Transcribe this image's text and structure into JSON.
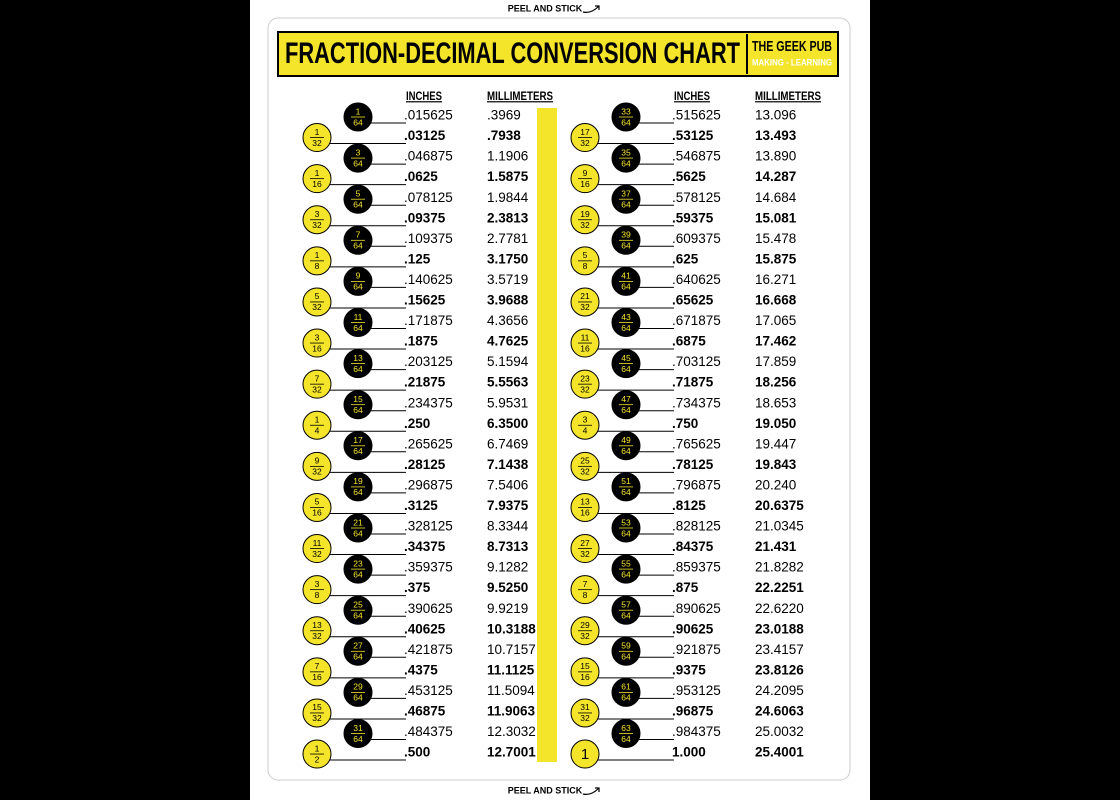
{
  "header": {
    "peel_top": "PEEL AND STICK",
    "title": "FRACTION-DECIMAL CONVERSION CHART",
    "brand": "THE GEEK PUB",
    "tagline": "MAKING - LEARNING"
  },
  "footer": {
    "peel_bottom": "PEEL AND STICK"
  },
  "columns": [
    {
      "inches_header": "INCHES",
      "mm_header": "MILLIMETERS",
      "rows": [
        [
          "1",
          "64",
          ".015625",
          ".3969"
        ],
        [
          "1",
          "32",
          ".03125",
          ".7938"
        ],
        [
          "3",
          "64",
          ".046875",
          "1.1906"
        ],
        [
          "1",
          "16",
          ".0625",
          "1.5875"
        ],
        [
          "5",
          "64",
          ".078125",
          "1.9844"
        ],
        [
          "3",
          "32",
          ".09375",
          "2.3813"
        ],
        [
          "7",
          "64",
          ".109375",
          "2.7781"
        ],
        [
          "1",
          "8",
          ".125",
          "3.1750"
        ],
        [
          "9",
          "64",
          ".140625",
          "3.5719"
        ],
        [
          "5",
          "32",
          ".15625",
          "3.9688"
        ],
        [
          "11",
          "64",
          ".171875",
          "4.3656"
        ],
        [
          "3",
          "16",
          ".1875",
          "4.7625"
        ],
        [
          "13",
          "64",
          ".203125",
          "5.1594"
        ],
        [
          "7",
          "32",
          ".21875",
          "5.5563"
        ],
        [
          "15",
          "64",
          ".234375",
          "5.9531"
        ],
        [
          "1",
          "4",
          ".250",
          "6.3500"
        ],
        [
          "17",
          "64",
          ".265625",
          "6.7469"
        ],
        [
          "9",
          "32",
          ".28125",
          "7.1438"
        ],
        [
          "19",
          "64",
          ".296875",
          "7.5406"
        ],
        [
          "5",
          "16",
          ".3125",
          "7.9375"
        ],
        [
          "21",
          "64",
          ".328125",
          "8.3344"
        ],
        [
          "11",
          "32",
          ".34375",
          "8.7313"
        ],
        [
          "23",
          "64",
          ".359375",
          "9.1282"
        ],
        [
          "3",
          "8",
          ".375",
          "9.5250"
        ],
        [
          "25",
          "64",
          ".390625",
          "9.9219"
        ],
        [
          "13",
          "32",
          ".40625",
          "10.3188"
        ],
        [
          "27",
          "64",
          ".421875",
          "10.7157"
        ],
        [
          "7",
          "16",
          ".4375",
          "11.1125"
        ],
        [
          "29",
          "64",
          ".453125",
          "11.5094"
        ],
        [
          "15",
          "32",
          ".46875",
          "11.9063"
        ],
        [
          "31",
          "64",
          ".484375",
          "12.3032"
        ],
        [
          "1",
          "2",
          ".500",
          "12.7001"
        ]
      ]
    },
    {
      "inches_header": "INCHES",
      "mm_header": "MILLIMETERS",
      "rows": [
        [
          "33",
          "64",
          ".515625",
          "13.096"
        ],
        [
          "17",
          "32",
          ".53125",
          "13.493"
        ],
        [
          "35",
          "64",
          ".546875",
          "13.890"
        ],
        [
          "9",
          "16",
          ".5625",
          "14.287"
        ],
        [
          "37",
          "64",
          ".578125",
          "14.684"
        ],
        [
          "19",
          "32",
          ".59375",
          "15.081"
        ],
        [
          "39",
          "64",
          ".609375",
          "15.478"
        ],
        [
          "5",
          "8",
          ".625",
          "15.875"
        ],
        [
          "41",
          "64",
          ".640625",
          "16.271"
        ],
        [
          "21",
          "32",
          ".65625",
          "16.668"
        ],
        [
          "43",
          "64",
          ".671875",
          "17.065"
        ],
        [
          "11",
          "16",
          ".6875",
          "17.462"
        ],
        [
          "45",
          "64",
          ".703125",
          "17.859"
        ],
        [
          "23",
          "32",
          ".71875",
          "18.256"
        ],
        [
          "47",
          "64",
          ".734375",
          "18.653"
        ],
        [
          "3",
          "4",
          ".750",
          "19.050"
        ],
        [
          "49",
          "64",
          ".765625",
          "19.447"
        ],
        [
          "25",
          "32",
          ".78125",
          "19.843"
        ],
        [
          "51",
          "64",
          ".796875",
          "20.240"
        ],
        [
          "13",
          "16",
          ".8125",
          "20.6375"
        ],
        [
          "53",
          "64",
          ".828125",
          "21.0345"
        ],
        [
          "27",
          "32",
          ".84375",
          "21.431"
        ],
        [
          "55",
          "64",
          ".859375",
          "21.8282"
        ],
        [
          "7",
          "8",
          ".875",
          "22.2251"
        ],
        [
          "57",
          "64",
          ".890625",
          "22.6220"
        ],
        [
          "29",
          "32",
          ".90625",
          "23.0188"
        ],
        [
          "59",
          "64",
          ".921875",
          "23.4157"
        ],
        [
          "15",
          "16",
          ".9375",
          "23.8126"
        ],
        [
          "61",
          "64",
          ".953125",
          "24.2095"
        ],
        [
          "31",
          "32",
          ".96875",
          "24.6063"
        ],
        [
          "63",
          "64",
          ".984375",
          "25.0032"
        ],
        [
          "1",
          "1.000",
          "25.4001"
        ]
      ]
    }
  ]
}
